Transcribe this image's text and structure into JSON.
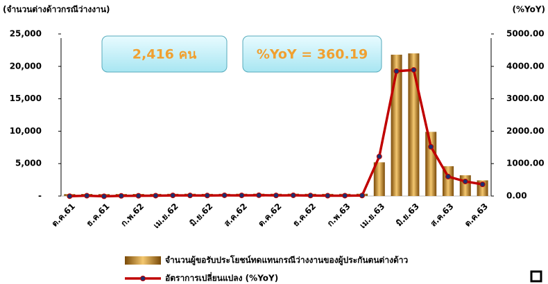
{
  "chart_data": {
    "type": "combo",
    "ylabel": "(จำนวนต่างด้าวกรณีว่างงาน)",
    "y2label": "(%YoY)",
    "categories": [
      "ต.ค.61",
      null,
      "ธ.ค.61",
      null,
      "ก.พ.62",
      null,
      "เม.ย.62",
      null,
      "มิ.ย.62",
      null,
      "ส.ค.62",
      null,
      "ต.ค.62",
      null,
      "ธ.ค.62",
      null,
      "ก.พ.63",
      null,
      "เม.ย.63",
      null,
      "มิ.ย.63",
      null,
      "ส.ค.63",
      null,
      "ต.ค.63"
    ],
    "series": [
      {
        "name": "จำนวนผู้ขอรับประโยชน์ทดแทนกรณีว่างงานของผู้ประกันตนต่างด้าว",
        "type": "bar",
        "color": "#c8901e",
        "values": [
          300,
          320,
          300,
          310,
          320,
          330,
          340,
          350,
          330,
          340,
          350,
          360,
          350,
          360,
          340,
          330,
          340,
          350,
          5200,
          21800,
          22000,
          9900,
          4600,
          3200,
          2416
        ]
      },
      {
        "name": "อัตราการเปลี่ยนแปลง (%YoY)",
        "type": "line",
        "axis": "y2",
        "color": "#c00000",
        "marker": "#1f2f6e",
        "values": [
          -5,
          10,
          -8,
          5,
          8,
          12,
          20,
          18,
          15,
          22,
          20,
          25,
          18,
          22,
          15,
          10,
          12,
          15,
          1220,
          3850,
          3890,
          1520,
          600,
          450,
          360.19
        ]
      }
    ],
    "ylim": [
      0,
      25000
    ],
    "yticks": [
      {
        "value": 0,
        "label": "-"
      },
      {
        "value": 5000,
        "label": "5,000"
      },
      {
        "value": 10000,
        "label": "10,000"
      },
      {
        "value": 15000,
        "label": "15,000"
      },
      {
        "value": 20000,
        "label": "20,000"
      },
      {
        "value": 25000,
        "label": "25,000"
      }
    ],
    "y2lim": [
      0,
      5000
    ],
    "y2ticks": [
      {
        "value": 0,
        "label": "0.00"
      },
      {
        "value": 1000,
        "label": "1000.00"
      },
      {
        "value": 2000,
        "label": "2000.00"
      },
      {
        "value": 3000,
        "label": "3000.00"
      },
      {
        "value": 4000,
        "label": "4000.00"
      },
      {
        "value": 5000,
        "label": "5000.00"
      }
    ],
    "annotations": [
      "2,416 คน",
      "%YoY = 360.19"
    ]
  }
}
